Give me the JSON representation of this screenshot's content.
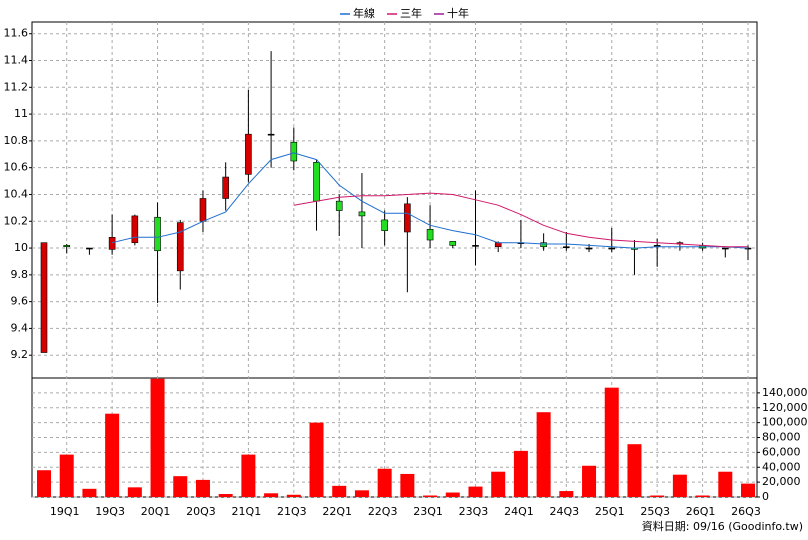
{
  "chart_data": [
    {
      "type": "candlestick",
      "categories": [
        null,
        "19Q1",
        null,
        "19Q3",
        null,
        "20Q1",
        null,
        "20Q3",
        null,
        "21Q1",
        null,
        "21Q3",
        null,
        "22Q1",
        null,
        "22Q3",
        null,
        "23Q1",
        null,
        "23Q3",
        null,
        "24Q1",
        null,
        "24Q3",
        null,
        "25Q1",
        null,
        "25Q3",
        null,
        "26Q1",
        null,
        "26Q3"
      ],
      "open": [
        9.22,
        10.02,
        10.0,
        9.99,
        10.04,
        10.23,
        9.83,
        10.2,
        10.37,
        10.55,
        10.85,
        10.79,
        10.64,
        10.35,
        10.27,
        10.21,
        10.12,
        10.14,
        10.05,
        10.02,
        10.01,
        10.04,
        10.04,
        10.01,
        10.0,
        10.0,
        10.0,
        10.02,
        10.03,
        10.02,
        10.0,
        10.0
      ],
      "high": [
        10.04,
        10.03,
        10.0,
        10.25,
        10.25,
        10.34,
        10.21,
        10.43,
        10.64,
        11.18,
        11.47,
        10.9,
        10.66,
        10.4,
        10.56,
        10.28,
        10.38,
        10.32,
        10.05,
        10.43,
        10.05,
        10.21,
        10.11,
        10.12,
        10.03,
        10.15,
        10.06,
        10.07,
        10.05,
        10.04,
        10.0,
        10.02
      ],
      "low": [
        9.22,
        9.96,
        9.95,
        9.95,
        10.02,
        9.59,
        9.69,
        10.12,
        10.28,
        10.49,
        10.6,
        10.58,
        10.13,
        10.09,
        10.0,
        10.02,
        9.67,
        10.0,
        10.0,
        9.87,
        9.97,
        10.0,
        9.98,
        9.98,
        9.97,
        9.97,
        9.8,
        9.86,
        9.98,
        9.98,
        9.93,
        9.91
      ],
      "close": [
        10.04,
        10.01,
        10.0,
        10.08,
        10.24,
        9.98,
        10.19,
        10.37,
        10.53,
        10.85,
        10.85,
        10.65,
        10.35,
        10.28,
        10.24,
        10.13,
        10.33,
        10.06,
        10.02,
        10.02,
        10.04,
        10.04,
        10.01,
        10.01,
        10.0,
        10.0,
        9.99,
        10.02,
        10.04,
        10.0,
        10.0,
        10.0
      ],
      "up_color": "#d40000",
      "down_color": "#22dd22",
      "lines": [
        {
          "name": "年線",
          "color": "#1f6fd0",
          "values": [
            null,
            null,
            null,
            10.04,
            10.08,
            10.08,
            10.12,
            10.2,
            10.27,
            10.48,
            10.66,
            10.71,
            10.66,
            10.47,
            10.35,
            10.26,
            10.26,
            10.17,
            10.13,
            10.1,
            10.04,
            10.04,
            10.03,
            10.03,
            10.02,
            10.01,
            10.0,
            10.01,
            10.01,
            10.01,
            10.01,
            10.0
          ]
        },
        {
          "name": "三年",
          "color": "#d0186a",
          "values": [
            null,
            null,
            null,
            null,
            null,
            null,
            null,
            null,
            null,
            null,
            null,
            10.32,
            10.35,
            10.38,
            10.39,
            10.39,
            10.4,
            10.41,
            10.4,
            10.36,
            10.32,
            10.25,
            10.17,
            10.11,
            10.08,
            10.06,
            10.05,
            10.04,
            10.03,
            10.02,
            10.01,
            10.01
          ]
        },
        {
          "name": "十年",
          "color": "#9b1f9b",
          "values": [
            null,
            null,
            null,
            null,
            null,
            null,
            null,
            null,
            null,
            null,
            null,
            null,
            null,
            null,
            null,
            null,
            null,
            null,
            null,
            null,
            null,
            null,
            null,
            null,
            null,
            null,
            null,
            null,
            null,
            null,
            null,
            null
          ]
        }
      ],
      "ylim": [
        9.03,
        11.68
      ],
      "yticks": [
        9.2,
        9.4,
        9.6,
        9.8,
        10,
        10.2,
        10.4,
        10.6,
        10.8,
        11,
        11.2,
        11.4,
        11.6
      ],
      "grid": true
    },
    {
      "type": "bar",
      "values": [
        36000,
        57000,
        11000,
        112000,
        13000,
        159000,
        28000,
        23000,
        4000,
        57000,
        5000,
        3000,
        100000,
        15000,
        9000,
        38000,
        31000,
        2000,
        6000,
        14000,
        34000,
        62000,
        114000,
        8000,
        42000,
        147000,
        71000,
        2000,
        30000,
        2000,
        34000,
        18000
      ],
      "color": "#ff0000",
      "ylim": [
        0,
        160000
      ],
      "yticks": [
        0,
        {
          "value": 20000,
          "label": "20,000"
        },
        {
          "value": 40000,
          "label": "40,000"
        },
        {
          "value": 60000,
          "label": "60,000"
        },
        {
          "value": 80000,
          "label": "80,000"
        },
        {
          "value": 100000,
          "label": "100,000"
        },
        {
          "value": 120000,
          "label": "120,000"
        },
        {
          "value": 140000,
          "label": "140,000"
        }
      ],
      "grid": true
    }
  ],
  "footer": "資料日期: 09/16 (Goodinfo.tw)"
}
